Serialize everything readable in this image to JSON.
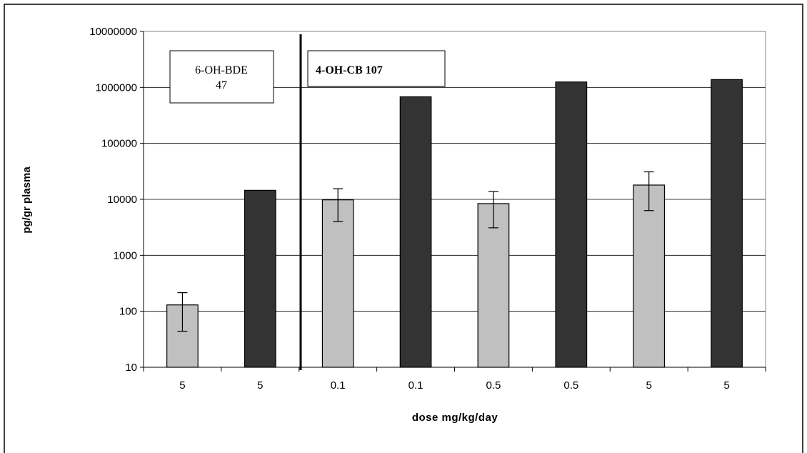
{
  "chart_data": {
    "type": "bar",
    "scale": "log",
    "xlabel": "dose mg/kg/day",
    "ylabel": "pg/gr plasma",
    "ylim": [
      10,
      10000000
    ],
    "yticks": [
      "10",
      "100",
      "1000",
      "10000",
      "100000",
      "1000000",
      "10000000"
    ],
    "ytick_values": [
      10,
      100,
      1000,
      10000,
      100000,
      1000000,
      10000000
    ],
    "grid": true,
    "categories": [
      "5",
      "5",
      "0.1",
      "0.1",
      "0.5",
      "0.5",
      "5",
      "5"
    ],
    "bars": [
      {
        "category": "5",
        "value": 130,
        "color": "#c0c0c0",
        "err_low": 44,
        "err_high": 215
      },
      {
        "category": "5",
        "value": 14500,
        "color": "#333333"
      },
      {
        "category": "0.1",
        "value": 9800,
        "color": "#c0c0c0",
        "err_low": 4000,
        "err_high": 15500
      },
      {
        "category": "0.1",
        "value": 680000,
        "color": "#333333"
      },
      {
        "category": "0.5",
        "value": 8400,
        "color": "#c0c0c0",
        "err_low": 3100,
        "err_high": 13800
      },
      {
        "category": "0.5",
        "value": 1250000,
        "color": "#333333"
      },
      {
        "category": "5",
        "value": 18000,
        "color": "#c0c0c0",
        "err_low": 6300,
        "err_high": 31000
      },
      {
        "category": "5",
        "value": 1380000,
        "color": "#333333"
      }
    ],
    "group_labels": [
      {
        "text_lines": [
          "6-OH-BDE",
          "47"
        ],
        "style": "normal"
      },
      {
        "text_lines": [
          "4-OH-CB 107"
        ],
        "style": "bold"
      }
    ],
    "separator_after_category_index": 1
  }
}
